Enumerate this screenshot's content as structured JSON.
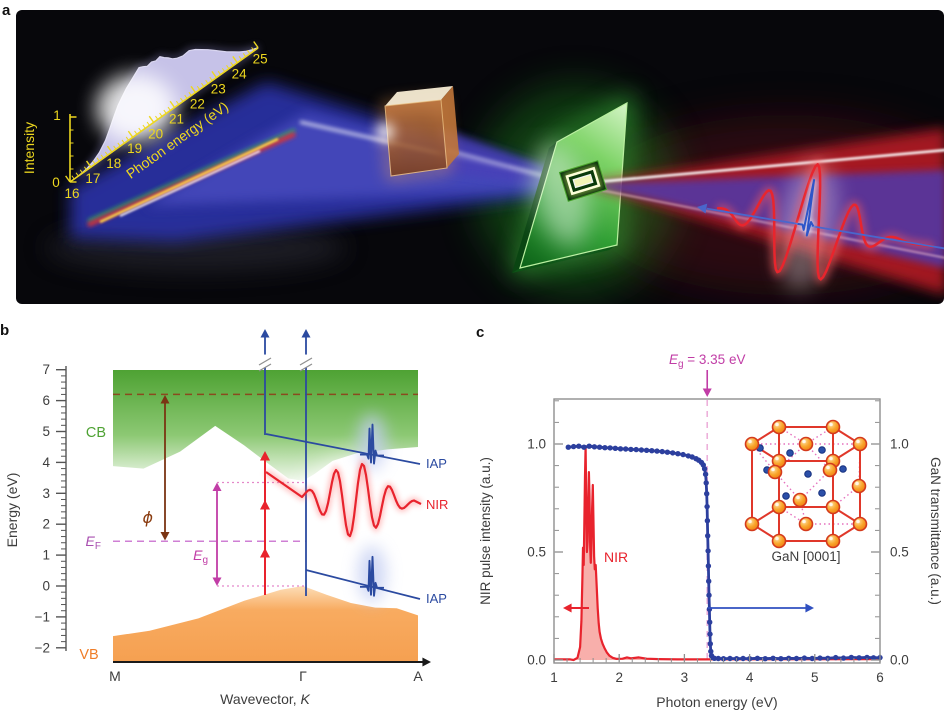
{
  "figure_label_a": "a",
  "figure_label_b": "b",
  "figure_label_c": "c",
  "panel_a": {
    "spectrum_plot": {
      "intensity_axis_label": "Intensity",
      "intensity_ticks": [
        "0",
        "1"
      ],
      "energy_axis_label": "Photon energy (eV)",
      "energy_ticks": [
        "16",
        "17",
        "18",
        "19",
        "20",
        "21",
        "22",
        "23",
        "24",
        "25"
      ]
    }
  },
  "panel_b": {
    "y_axis_label": "Energy (eV)",
    "y_tick_labels": [
      "7",
      "6",
      "5",
      "4",
      "3",
      "2",
      "1",
      "0",
      "−1",
      "−2"
    ],
    "y_tick_values": [
      7,
      6,
      5,
      4,
      3,
      2,
      1,
      0,
      -1,
      -2
    ],
    "x_axis_label_prefix": "Wavevector, ",
    "x_axis_label_italic": "K",
    "x_ticks": [
      "M",
      "Γ",
      "A"
    ],
    "cb_label": "CB",
    "vb_label": "VB",
    "ef_main": "E",
    "ef_sub": "F",
    "eg_main": "E",
    "eg_sub": "g",
    "phi_label": "ϕ",
    "iap_label": "IAP",
    "nir_label": "NIR"
  },
  "panel_c": {
    "left_axis_label": "NIR pulse intensity (a.u.)",
    "right_axis_label": "GaN transmittance (a.u.)",
    "x_axis_label": "Photon energy (eV)",
    "x_ticks": [
      "1",
      "2",
      "3",
      "4",
      "5",
      "6"
    ],
    "x_tick_values": [
      1,
      2,
      3,
      4,
      5,
      6
    ],
    "y_tick_labels": [
      "0.0",
      "0.5",
      "1.0"
    ],
    "y_tick_values": [
      0,
      0.5,
      1
    ],
    "eg_main": "E",
    "eg_sub": "g",
    "eg_rest": " = 3.35 eV",
    "nir_label": "NIR",
    "inset_label": "GaN [0001]"
  },
  "chart_data": [
    {
      "type": "area",
      "title": "XUV attosecond pulse spectrum (panel a inset)",
      "xlabel": "Photon energy (eV)",
      "ylabel": "Intensity",
      "xlim": [
        16,
        25
      ],
      "ylim": [
        0,
        1
      ],
      "x": [
        16.4,
        16.8,
        17.1,
        17.4,
        17.7,
        17.9,
        18.1,
        18.3,
        18.5,
        18.7,
        18.9,
        19.1,
        19.3,
        19.5,
        19.7,
        19.9,
        20.1,
        20.3,
        20.5,
        20.7,
        20.9,
        21.1,
        21.4,
        21.7,
        22.0,
        22.3,
        22.6,
        22.9,
        23.2,
        23.5,
        23.8,
        24.1,
        24.4,
        24.7,
        25.0
      ],
      "y": [
        0,
        0.02,
        0.06,
        0.13,
        0.25,
        0.38,
        0.52,
        0.65,
        0.74,
        0.82,
        0.88,
        0.94,
        1.0,
        0.97,
        0.93,
        0.95,
        0.92,
        0.94,
        0.88,
        0.83,
        0.77,
        0.73,
        0.7,
        0.71,
        0.66,
        0.59,
        0.52,
        0.44,
        0.36,
        0.28,
        0.21,
        0.14,
        0.08,
        0.035,
        0
      ]
    },
    {
      "type": "area",
      "title": "Schematic band structure of GaN (panel b)",
      "xlabel": "Wavevector, K",
      "ylabel": "Energy (eV)",
      "ylim": [
        -2,
        7
      ],
      "x_categories": [
        "M",
        "Γ",
        "A"
      ],
      "gamma_fraction": 0.623,
      "E_F_eV": 1.45,
      "E_g_eV": 3.35,
      "vacuum_dashed_level_eV": 6.2,
      "cb_bottom": {
        "k": [
          0,
          0.1,
          0.22,
          0.335,
          0.43,
          0.51,
          0.575,
          0.623,
          0.66,
          0.72,
          0.8,
          0.9,
          1.0
        ],
        "E": [
          3.88,
          3.8,
          4.35,
          5.18,
          4.55,
          3.95,
          3.48,
          3.4,
          3.62,
          4.05,
          4.3,
          4.42,
          4.5
        ]
      },
      "vb_top": {
        "k": [
          0,
          0.12,
          0.28,
          0.43,
          0.55,
          0.623,
          0.7,
          0.78,
          0.86,
          0.93,
          1.0
        ],
        "E": [
          -1.62,
          -1.45,
          -1.05,
          -0.48,
          -0.12,
          0.0,
          -0.28,
          -0.55,
          -0.7,
          -0.72,
          -0.95
        ]
      }
    },
    {
      "type": "line",
      "title": "NIR pulse spectrum and GaN transmittance (panel c)",
      "xlabel": "Photon energy (eV)",
      "xlim": [
        1,
        6
      ],
      "ylim": [
        0,
        1.2
      ],
      "left_ylabel": "NIR pulse intensity (a.u.)",
      "right_ylabel": "GaN transmittance (a.u.)",
      "annotation": {
        "text": "E_g = 3.35 eV",
        "x": 3.35
      },
      "series": [
        {
          "name": "NIR spectrum",
          "color": "#e8232d",
          "style": "filled-area",
          "x": [
            1.3,
            1.36,
            1.4,
            1.42,
            1.435,
            1.445,
            1.455,
            1.465,
            1.475,
            1.485,
            1.495,
            1.505,
            1.515,
            1.525,
            1.535,
            1.545,
            1.555,
            1.565,
            1.575,
            1.585,
            1.595,
            1.605,
            1.615,
            1.625,
            1.64,
            1.655,
            1.67,
            1.685,
            1.7,
            1.72,
            1.745,
            1.775,
            1.81,
            1.85,
            1.9,
            1.96,
            2.05,
            2.12,
            2.18,
            2.3,
            2.42,
            2.6,
            2.9,
            3.2
          ],
          "y": [
            0,
            0.01,
            0.06,
            0.18,
            0.38,
            0.52,
            0.44,
            0.62,
            0.85,
            0.99,
            0.72,
            0.5,
            0.55,
            0.7,
            0.87,
            0.76,
            0.52,
            0.45,
            0.56,
            0.7,
            0.81,
            0.66,
            0.48,
            0.42,
            0.44,
            0.34,
            0.24,
            0.17,
            0.13,
            0.1,
            0.075,
            0.055,
            0.035,
            0.02,
            0.01,
            0.005,
            0.006,
            0.012,
            0.008,
            0.012,
            0.006,
            0.004,
            0.003,
            0.003
          ]
        },
        {
          "name": "GaN transmittance",
          "color": "#2c3f9e",
          "style": "line-markers",
          "x": [
            1.22,
            1.3,
            1.38,
            1.46,
            1.54,
            1.62,
            1.7,
            1.78,
            1.86,
            1.94,
            2.02,
            2.1,
            2.18,
            2.26,
            2.34,
            2.42,
            2.5,
            2.58,
            2.66,
            2.74,
            2.82,
            2.9,
            2.98,
            3.06,
            3.12,
            3.18,
            3.22,
            3.26,
            3.29,
            3.31,
            3.325,
            3.335,
            3.342,
            3.348,
            3.353,
            3.358,
            3.363,
            3.368,
            3.373,
            3.378,
            3.383,
            3.388,
            3.393,
            3.398,
            3.405,
            3.415,
            3.43,
            3.46,
            3.52,
            3.6,
            3.7,
            3.8,
            3.9,
            4.0,
            4.12,
            4.24,
            4.36,
            4.48,
            4.6,
            4.72,
            4.84,
            4.96,
            5.08,
            5.2,
            5.32,
            5.44,
            5.56,
            5.68,
            5.8,
            5.9,
            6.0
          ],
          "y": [
            0.985,
            0.988,
            0.99,
            0.985,
            0.99,
            0.987,
            0.985,
            0.983,
            0.982,
            0.98,
            0.978,
            0.977,
            0.975,
            0.974,
            0.972,
            0.971,
            0.969,
            0.967,
            0.965,
            0.962,
            0.959,
            0.955,
            0.951,
            0.945,
            0.94,
            0.932,
            0.925,
            0.915,
            0.903,
            0.885,
            0.86,
            0.82,
            0.77,
            0.71,
            0.645,
            0.575,
            0.505,
            0.435,
            0.365,
            0.3,
            0.235,
            0.175,
            0.12,
            0.075,
            0.04,
            0.02,
            0.012,
            0.008,
            0.007,
            0.006,
            0.007,
            0.006,
            0.007,
            0.006,
            0.008,
            0.006,
            0.008,
            0.006,
            0.008,
            0.007,
            0.009,
            0.007,
            0.009,
            0.008,
            0.011,
            0.009,
            0.012,
            0.01,
            0.012,
            0.01,
            0.011
          ]
        }
      ]
    }
  ],
  "inset_crystal": {
    "orange_atoms": [
      [
        390,
        124
      ],
      [
        363,
        141
      ],
      [
        309,
        141
      ],
      [
        282,
        124
      ],
      [
        309,
        107
      ],
      [
        363,
        107
      ],
      [
        390,
        204
      ],
      [
        363,
        221
      ],
      [
        309,
        221
      ],
      [
        282,
        204
      ],
      [
        309,
        187
      ],
      [
        363,
        187
      ],
      [
        336,
        124
      ],
      [
        336,
        204
      ],
      [
        305,
        152
      ],
      [
        360,
        150
      ],
      [
        330,
        180
      ],
      [
        389,
        166
      ]
    ],
    "blue_atoms": [
      [
        320,
        133
      ],
      [
        352,
        130
      ],
      [
        297,
        150
      ],
      [
        338,
        154
      ],
      [
        373,
        149
      ],
      [
        316,
        176
      ],
      [
        352,
        173
      ],
      [
        290,
        128
      ]
    ],
    "dotted_bonds": [
      [
        336,
        124,
        305,
        152
      ],
      [
        336,
        124,
        360,
        150
      ],
      [
        305,
        152,
        330,
        180
      ],
      [
        360,
        150,
        330,
        180
      ],
      [
        330,
        180,
        336,
        204
      ],
      [
        305,
        152,
        309,
        141
      ],
      [
        360,
        150,
        363,
        141
      ],
      [
        389,
        166,
        390,
        124
      ],
      [
        389,
        166,
        363,
        187
      ],
      [
        305,
        152,
        282,
        124
      ],
      [
        282,
        124,
        336,
        124
      ],
      [
        336,
        124,
        390,
        124
      ],
      [
        309,
        107,
        336,
        124
      ],
      [
        363,
        107,
        336,
        124
      ],
      [
        309,
        187,
        336,
        204
      ],
      [
        336,
        204,
        390,
        204
      ]
    ]
  },
  "colors": {
    "nir_red": "#e8232d",
    "iap_blue": "#2b4aa0",
    "transmittance_blue": "#2c3f9e",
    "eg_magenta": "#c13da6",
    "ef_purple": "#a94fb0",
    "phi_brown": "#8a3c10",
    "cb_green": "#4ea233",
    "vb_orange": "#f49b4e",
    "axis_gray": "#3d3d3d",
    "spectrum_yellow": "#edd71f"
  }
}
